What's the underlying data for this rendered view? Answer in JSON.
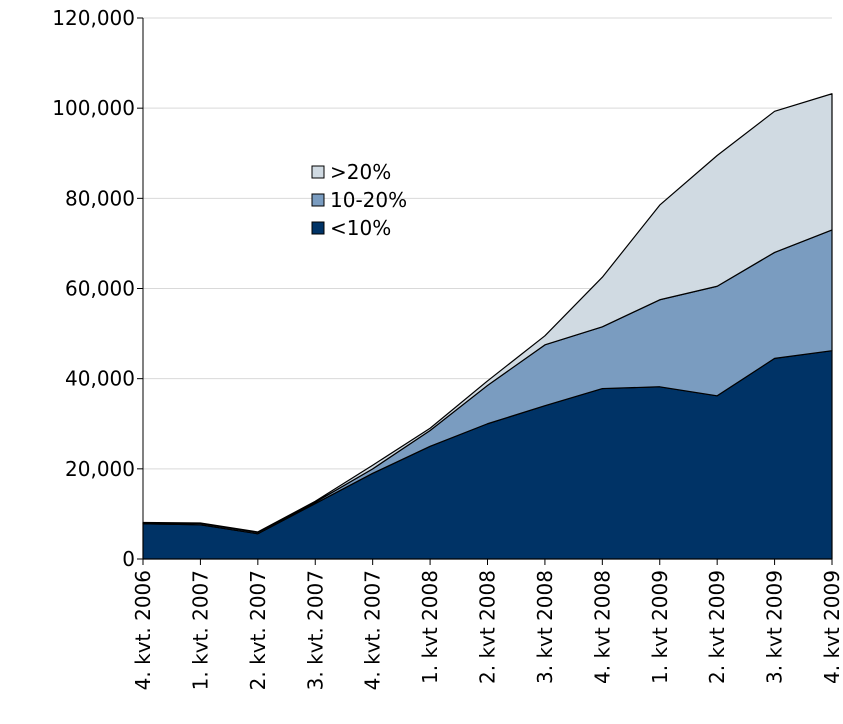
{
  "chart_data": {
    "type": "stacked_area",
    "categories": [
      "4. kvt. 2006",
      "1. kvt. 2007",
      "2. kvt. 2007",
      "3. kvt. 2007",
      "4. kvt. 2007",
      "1. kvt 2008",
      "2. kvt 2008",
      "3. kvt 2008",
      "4. kvt 2008",
      "1. kvt 2009",
      "2. kvt 2009",
      "3. kvt 2009",
      "4. kvt 2009"
    ],
    "series": [
      {
        "name": "<10%",
        "color": "#003366",
        "values": [
          7800,
          7600,
          5600,
          12300,
          19000,
          25000,
          30000,
          34000,
          37800,
          38200,
          36200,
          44500,
          46200
        ]
      },
      {
        "name": "10-20%",
        "color": "#7a9cc0",
        "values": [
          200,
          300,
          300,
          300,
          1000,
          3500,
          8500,
          13500,
          13700,
          19300,
          24300,
          23500,
          26800
        ]
      },
      {
        "name": ">20%",
        "color": "#d0dae2",
        "values": [
          100,
          100,
          100,
          200,
          800,
          500,
          1000,
          2000,
          11000,
          21000,
          29000,
          31300,
          30200
        ]
      }
    ],
    "ylim": [
      0,
      120000
    ],
    "yticks": [
      0,
      {
        "value": 20000,
        "label": "20,000"
      },
      {
        "value": 40000,
        "label": "40,000"
      },
      {
        "value": 60000,
        "label": "60,000"
      },
      {
        "value": 80000,
        "label": "80,000"
      },
      {
        "value": 100000,
        "label": "100,000"
      },
      {
        "value": 120000,
        "label": "120,000"
      }
    ],
    "grid": true,
    "legend": "upper-left"
  }
}
